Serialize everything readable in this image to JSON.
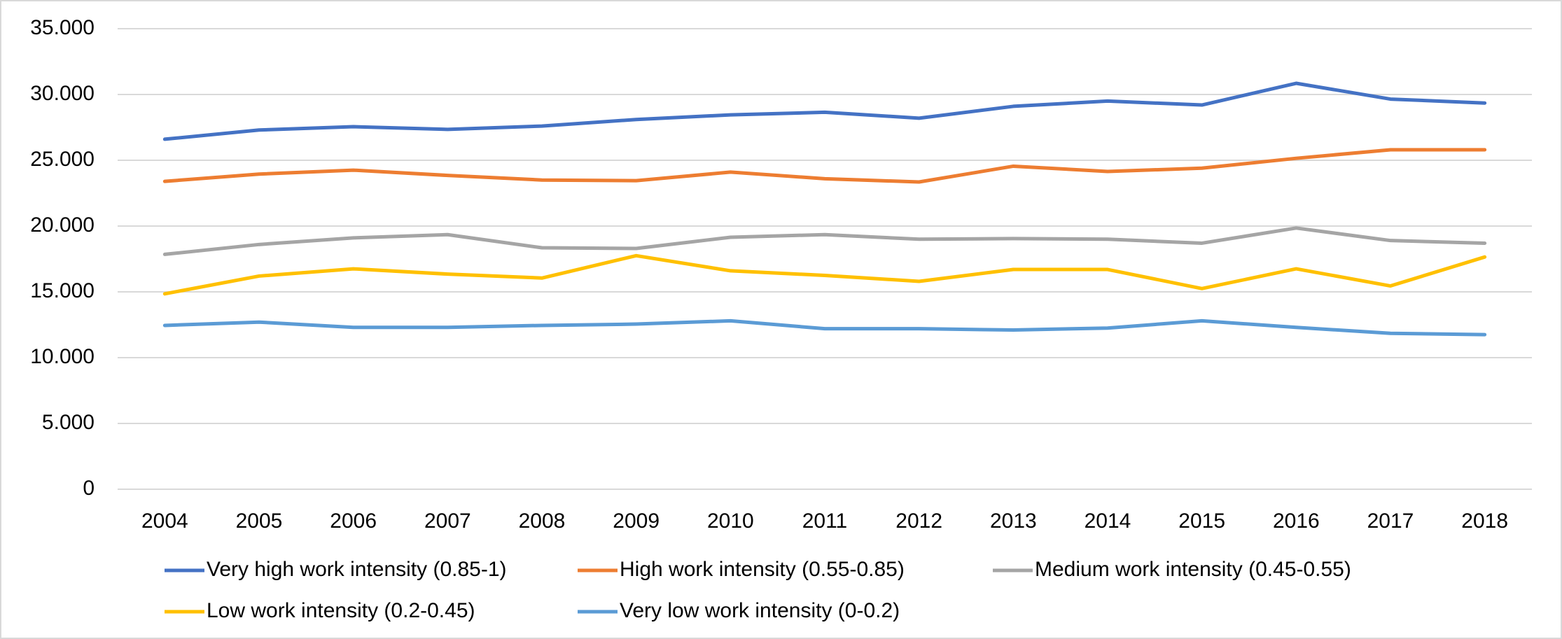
{
  "chart_data": {
    "type": "line",
    "categories": [
      "2004",
      "2005",
      "2006",
      "2007",
      "2008",
      "2009",
      "2010",
      "2011",
      "2012",
      "2013",
      "2014",
      "2015",
      "2016",
      "2017",
      "2018"
    ],
    "series": [
      {
        "name": "Very high work intensity (0.85-1)",
        "color": "#4472c4",
        "values": [
          26600,
          27300,
          27550,
          27350,
          27600,
          28100,
          28450,
          28650,
          28200,
          29100,
          29500,
          29200,
          30850,
          29650,
          29350
        ]
      },
      {
        "name": "High work intensity (0.55-0.85)",
        "color": "#ed7d31",
        "values": [
          23400,
          23950,
          24250,
          23850,
          23500,
          23450,
          24100,
          23600,
          23350,
          24550,
          24150,
          24400,
          25150,
          25800,
          25800
        ]
      },
      {
        "name": "Medium work intensity (0.45-0.55)",
        "color": "#a5a5a5",
        "values": [
          17850,
          18600,
          19100,
          19350,
          18350,
          18300,
          19150,
          19350,
          19000,
          19050,
          19000,
          18700,
          19850,
          18900,
          18700
        ]
      },
      {
        "name": "Low work intensity (0.2-0.45)",
        "color": "#ffc000",
        "values": [
          14850,
          16200,
          16750,
          16350,
          16050,
          17750,
          16600,
          16250,
          15800,
          16700,
          16700,
          15250,
          16750,
          15450,
          17650
        ]
      },
      {
        "name": "Very low work intensity (0-0.2)",
        "color": "#5b9bd5",
        "values": [
          12450,
          12700,
          12300,
          12300,
          12450,
          12550,
          12800,
          12200,
          12200,
          12100,
          12250,
          12800,
          12300,
          11850,
          11750
        ]
      }
    ],
    "ylim": [
      0,
      35000
    ],
    "yticks": [
      0,
      {
        "value": 5000,
        "label": "5.000"
      },
      {
        "value": 10000,
        "label": "10.000"
      },
      {
        "value": 15000,
        "label": "15.000"
      },
      {
        "value": 20000,
        "label": "20.000"
      },
      {
        "value": 25000,
        "label": "25.000"
      },
      {
        "value": 30000,
        "label": "30.000"
      },
      {
        "value": 35000,
        "label": "35.000"
      }
    ],
    "grid": true
  }
}
